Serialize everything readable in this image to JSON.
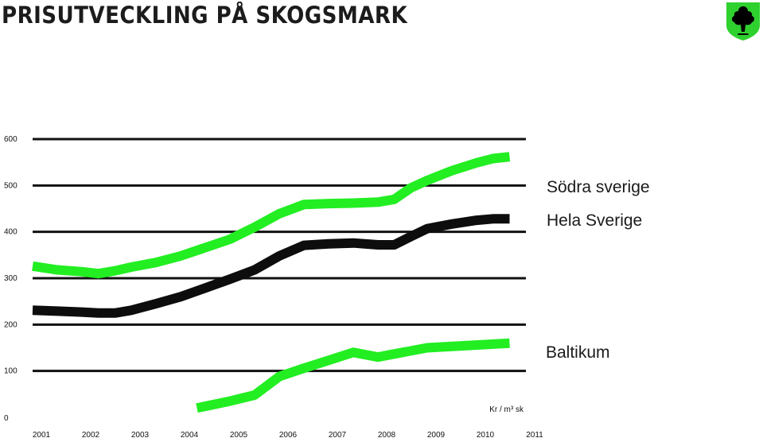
{
  "title": "PRISUTVECKLING PÅ SKOGSMARK",
  "logo_icon": "tree-shield-icon",
  "colors": {
    "green": "#22ee22",
    "black": "#0d0d0d",
    "logo_green": "#2fd12f",
    "grid": "#111111"
  },
  "chart_data": {
    "type": "line",
    "x": [
      "2001",
      "2002",
      "2003",
      "2004",
      "2005",
      "2006",
      "2007",
      "2008",
      "2009",
      "2010",
      "2011"
    ],
    "ylim": [
      0,
      600
    ],
    "yticks": [
      "0",
      "100",
      "200",
      "300",
      "400",
      "500",
      "600"
    ],
    "unit_label": "Kr / m³ sk",
    "grid": true,
    "series": [
      {
        "name": "Södra sverige",
        "color": "#22ee22",
        "points": [
          [
            2001,
            326
          ],
          [
            2001.5,
            318
          ],
          [
            2002,
            314
          ],
          [
            2002.33,
            310
          ],
          [
            2002.67,
            316
          ],
          [
            2003,
            324
          ],
          [
            2003.5,
            334
          ],
          [
            2004,
            348
          ],
          [
            2004.5,
            366
          ],
          [
            2005,
            384
          ],
          [
            2005.5,
            410
          ],
          [
            2006,
            439
          ],
          [
            2006.5,
            459
          ],
          [
            2007,
            461
          ],
          [
            2007.5,
            462
          ],
          [
            2008,
            464
          ],
          [
            2008.33,
            470
          ],
          [
            2008.67,
            495
          ],
          [
            2009,
            511
          ],
          [
            2009.5,
            532
          ],
          [
            2010,
            549
          ],
          [
            2010.33,
            558
          ],
          [
            2010.67,
            562
          ]
        ]
      },
      {
        "name": "Hela Sverige",
        "color": "#0d0d0d",
        "points": [
          [
            2001,
            231
          ],
          [
            2001.5,
            229
          ],
          [
            2002,
            227
          ],
          [
            2002.33,
            225
          ],
          [
            2002.67,
            225
          ],
          [
            2003,
            231
          ],
          [
            2003.5,
            245
          ],
          [
            2004,
            260
          ],
          [
            2004.5,
            279
          ],
          [
            2005,
            298
          ],
          [
            2005.5,
            318
          ],
          [
            2006,
            348
          ],
          [
            2006.5,
            371
          ],
          [
            2007,
            374
          ],
          [
            2007.5,
            376
          ],
          [
            2008,
            372
          ],
          [
            2008.33,
            372
          ],
          [
            2008.67,
            390
          ],
          [
            2009,
            407
          ],
          [
            2009.5,
            417
          ],
          [
            2010,
            425
          ],
          [
            2010.33,
            428
          ],
          [
            2010.67,
            428
          ]
        ]
      },
      {
        "name": "Baltikum",
        "color": "#22ee22",
        "points": [
          [
            2004.33,
            20
          ],
          [
            2005,
            35
          ],
          [
            2005.5,
            48
          ],
          [
            2006,
            88
          ],
          [
            2006.5,
            106
          ],
          [
            2007,
            123
          ],
          [
            2007.5,
            140
          ],
          [
            2008,
            130
          ],
          [
            2008.5,
            140
          ],
          [
            2009,
            150
          ],
          [
            2010.67,
            160
          ]
        ]
      }
    ]
  }
}
